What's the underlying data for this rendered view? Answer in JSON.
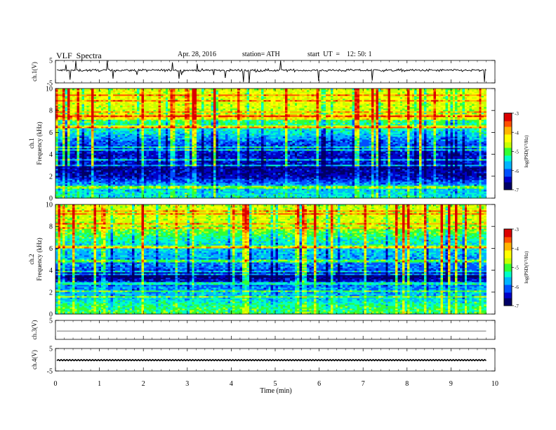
{
  "header": {
    "title": "VLF  Spectra",
    "date": "Apr. 28, 2016",
    "station": "station= ATH",
    "start": "start  UT  =    12: 50: 1"
  },
  "chart_data": [
    {
      "type": "line",
      "name": "ch1-waveform",
      "ylabel": "ch.1(V)",
      "ylim": [
        -5,
        5
      ],
      "yticks": [
        "5",
        "-5"
      ],
      "xlim": [
        0,
        10
      ],
      "data_end_min": 9.8,
      "baseline_v": 0.6,
      "note": "noisy waveform with impulsive spikes"
    },
    {
      "type": "heatmap",
      "name": "ch1-spectrogram",
      "ylabel": "ch.1",
      "ylabel2": "Frequency  (kHz)",
      "ylim": [
        0,
        10
      ],
      "yticks": [
        "0",
        "2",
        "4",
        "6",
        "8",
        "10"
      ],
      "xlim": [
        0,
        10
      ],
      "colorbar": {
        "label": "log(PSD(V²/Hz)",
        "range": [
          -7,
          -3
        ],
        "ticks": [
          "-3",
          "-4",
          "-5",
          "-6",
          "-7"
        ]
      },
      "profile_freq_khz": [
        0,
        1,
        2,
        2.8,
        3.2,
        4,
        5,
        6,
        7,
        8,
        9,
        10
      ],
      "profile_log_psd": [
        -5.4,
        -5.6,
        -6.5,
        -6.7,
        -6.4,
        -6.4,
        -6.1,
        -5.5,
        -5.1,
        -4.6,
        -4.4,
        -4.5
      ]
    },
    {
      "type": "heatmap",
      "name": "ch2-spectrogram",
      "ylabel": "ch.2",
      "ylabel2": "Frequency  (kHz)",
      "ylim": [
        0,
        10
      ],
      "yticks": [
        "0",
        "2",
        "4",
        "6",
        "8",
        "10"
      ],
      "xlim": [
        0,
        10
      ],
      "colorbar": {
        "label": "log(PSD(V²/Hz)",
        "range": [
          -7,
          -3
        ],
        "ticks": [
          "-3",
          "-4",
          "-5",
          "-6",
          "-7"
        ]
      },
      "profile_freq_khz": [
        0,
        0.8,
        1.5,
        2.5,
        3.5,
        4.2,
        5,
        6,
        7,
        8,
        9,
        10
      ],
      "profile_log_psd": [
        -5.0,
        -5.2,
        -5.6,
        -5.9,
        -6.8,
        -6.0,
        -5.8,
        -5.6,
        -5.2,
        -4.7,
        -4.5,
        -4.6
      ]
    },
    {
      "type": "line",
      "name": "ch3-waveform",
      "ylabel": "ch.3(V)",
      "ylim": [
        -5,
        5
      ],
      "yticks": [
        "5"
      ],
      "xlim": [
        0,
        10
      ],
      "data_end_min": 9.8,
      "baseline_v": -0.6
    },
    {
      "type": "line",
      "name": "ch4-waveform",
      "ylabel": "ch.4(V)",
      "ylim": [
        -5,
        5
      ],
      "yticks": [
        "5",
        "-5"
      ],
      "xlim": [
        0,
        10
      ],
      "data_end_min": 9.8,
      "baseline_v": -0.2
    }
  ],
  "x_axis": {
    "label": "Time  (min)",
    "ticks": [
      "0",
      "1",
      "2",
      "3",
      "4",
      "5",
      "6",
      "7",
      "8",
      "9",
      "10"
    ]
  },
  "colors": {
    "colormap": [
      "#000066",
      "#0000c8",
      "#0050ff",
      "#00b4ff",
      "#00ffc8",
      "#32ff32",
      "#c8ff00",
      "#ffff00",
      "#ffb400",
      "#ff5000",
      "#dc0000",
      "#ffffff"
    ]
  }
}
